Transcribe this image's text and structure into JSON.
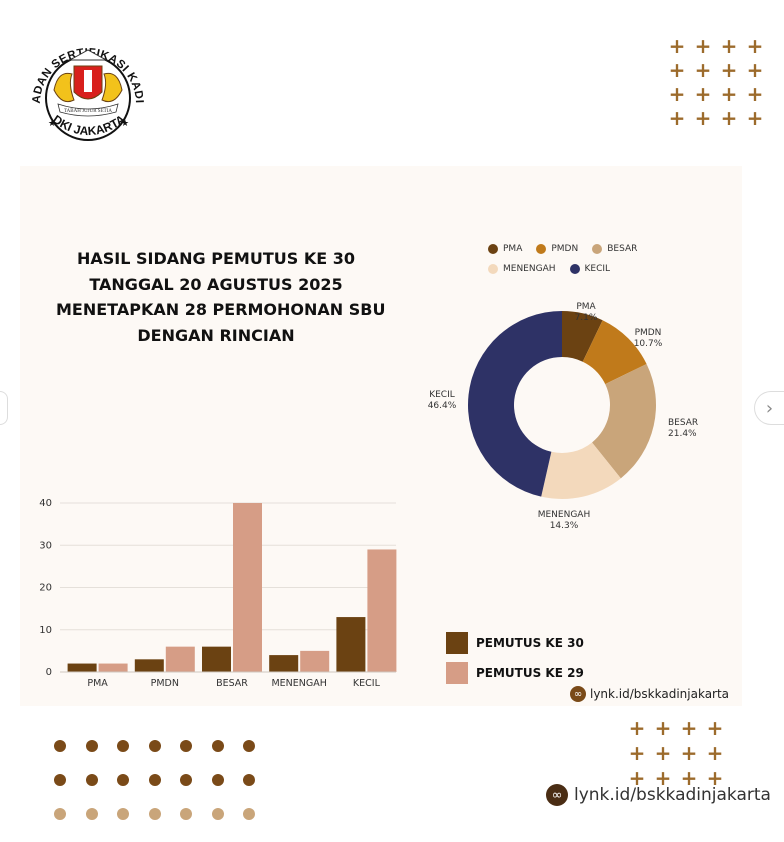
{
  "logo": {
    "arc_top": "BADAN SERTIFIKASI KADIN",
    "arc_bottom": "DKI JAKARTA",
    "ribbon": "TABAH JUJUR SETIA"
  },
  "title_lines": [
    "HASIL SIDANG PEMUTUS KE 30",
    "TANGGAL 20 AGUSTUS 2025",
    "MENETAPKAN 28 PERMOHONAN SBU",
    "DENGAN RINCIAN"
  ],
  "link_small": "lynk.id/bskkadinjakarta",
  "link_big": "lynk.id/bskkadinjakarta",
  "link_icon": "link-icon",
  "colors": {
    "pma": "#6b4212",
    "pmdn": "#c07a1b",
    "besar": "#c9a57a",
    "menengah": "#f3d9bc",
    "kecil": "#2e3266",
    "pemutus30": "#6b4212",
    "pemutus29": "#d69d86",
    "plus": "#9c6b2c"
  },
  "chart_data": [
    {
      "type": "pie",
      "style": "donut",
      "legend": [
        "PMA",
        "PMDN",
        "BESAR",
        "MENENGAH",
        "KECIL"
      ],
      "slices": [
        {
          "label": "PMA",
          "pct_label": "7.1%",
          "value": 7.1,
          "color": "#6b4212"
        },
        {
          "label": "PMDN",
          "pct_label": "10.7%",
          "value": 10.7,
          "color": "#c07a1b"
        },
        {
          "label": "BESAR",
          "pct_label": "21.4%",
          "value": 21.4,
          "color": "#c9a57a"
        },
        {
          "label": "MENENGAH",
          "pct_label": "14.3%",
          "value": 14.3,
          "color": "#f3d9bc"
        },
        {
          "label": "KECIL",
          "pct_label": "46.4%",
          "value": 46.4,
          "color": "#2e3266"
        }
      ],
      "legend_position": "top"
    },
    {
      "type": "bar",
      "categories": [
        "PMA",
        "PMDN",
        "BESAR",
        "MENENGAH",
        "KECIL"
      ],
      "series": [
        {
          "name": "PEMUTUS KE 30",
          "values": [
            2,
            3,
            6,
            4,
            13
          ],
          "color": "#6b4212"
        },
        {
          "name": "PEMUTUS KE 29",
          "values": [
            2,
            6,
            40,
            5,
            29
          ],
          "color": "#d69d86"
        }
      ],
      "yticks": [
        "0",
        "10",
        "20",
        "30",
        "40"
      ],
      "ylim": [
        0,
        40
      ],
      "grid": true,
      "legend_position": "bottom-right"
    }
  ],
  "decor": {
    "plus_glyph": "+",
    "dot_rows": [
      [
        "#7a4a18",
        "#7a4a18",
        "#7a4a18",
        "#7a4a18",
        "#7a4a18",
        "#7a4a18",
        "#7a4a18"
      ],
      [
        "#7a4a18",
        "#7a4a18",
        "#7a4a18",
        "#7a4a18",
        "#7a4a18",
        "#7a4a18",
        "#7a4a18"
      ],
      [
        "#c9a57a",
        "#c9a57a",
        "#c9a57a",
        "#c9a57a",
        "#c9a57a",
        "#c9a57a",
        "#c9a57a"
      ]
    ],
    "nav_next_icon": "chevron-right-icon",
    "nav_next_glyph": "›"
  }
}
